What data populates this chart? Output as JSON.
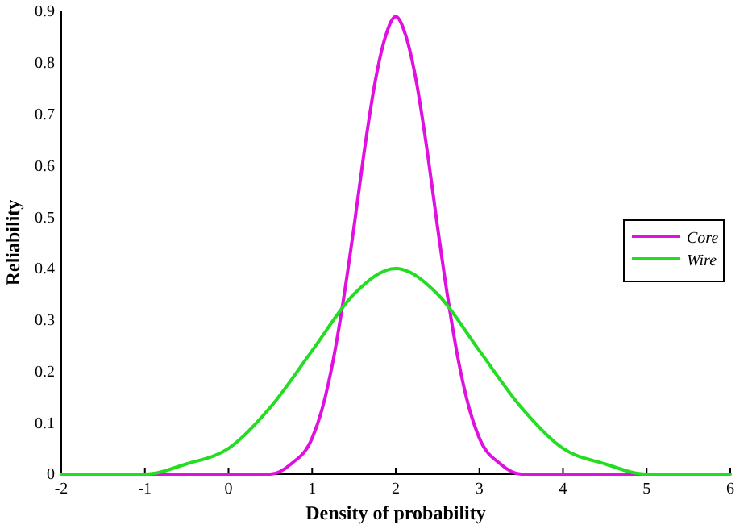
{
  "chart_data": {
    "type": "line",
    "xlabel": "Density of probability",
    "ylabel": "Reliability",
    "xlim": [
      -2,
      6
    ],
    "xticks": [
      -2,
      -1,
      0,
      1,
      2,
      3,
      4,
      5,
      6
    ],
    "ylim": [
      0,
      0.9
    ],
    "yticks": [
      0,
      0.1,
      0.2,
      0.3,
      0.4,
      0.5,
      0.6,
      0.7,
      0.8,
      0.9
    ],
    "legend": "right",
    "grid": false,
    "marker": "none",
    "line_style": "solid",
    "series": [
      {
        "name": "Core",
        "color": "#e010e0",
        "x": [
          -1,
          0,
          0.5,
          0.75,
          1,
          1.125,
          1.25,
          1.375,
          1.5,
          1.625,
          1.75,
          1.875,
          2,
          2.125,
          2.25,
          2.375,
          2.5,
          2.625,
          2.75,
          2.875,
          3,
          3.25,
          3.5,
          4,
          5
        ],
        "values": [
          0,
          0,
          0,
          0.02,
          0.07,
          0.13,
          0.22,
          0.34,
          0.48,
          0.63,
          0.76,
          0.85,
          0.89,
          0.85,
          0.76,
          0.63,
          0.48,
          0.34,
          0.22,
          0.13,
          0.07,
          0.02,
          0,
          0,
          0
        ]
      },
      {
        "name": "Wire",
        "color": "#22dd22",
        "x": [
          -2,
          -1.5,
          -1,
          -0.5,
          0,
          0.5,
          1,
          1.5,
          2,
          2.5,
          3,
          3.5,
          4,
          4.5,
          5,
          5.5,
          6
        ],
        "values": [
          0,
          0,
          0,
          0.02,
          0.05,
          0.13,
          0.24,
          0.35,
          0.4,
          0.35,
          0.24,
          0.13,
          0.05,
          0.02,
          0,
          0,
          0
        ]
      }
    ]
  }
}
